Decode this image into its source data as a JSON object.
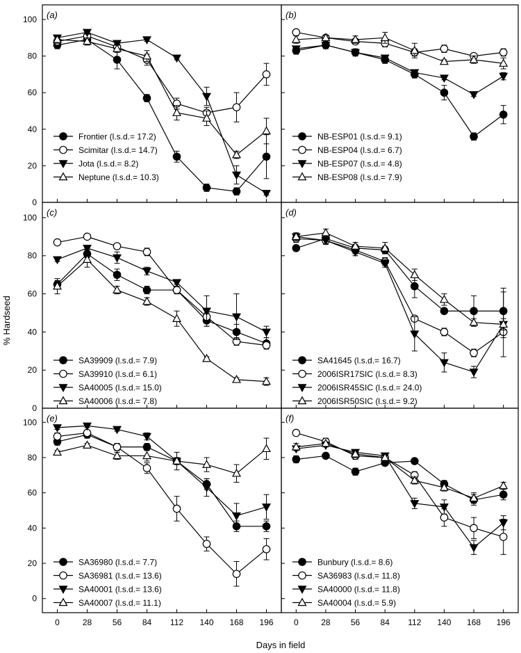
{
  "figure": {
    "ylabel": "% Hardseed",
    "xlabel": "Days in field",
    "x_ticks": [
      "0",
      "28",
      "56",
      "84",
      "112",
      "140",
      "168",
      "196"
    ],
    "y_ticks": [
      "0",
      "20",
      "40",
      "60",
      "80",
      "100"
    ]
  },
  "chart_data": [
    {
      "type": "line",
      "panel_label": "(a)",
      "x": [
        0,
        28,
        56,
        84,
        112,
        140,
        168,
        196
      ],
      "xlim": [
        -14,
        210
      ],
      "ylim": [
        0,
        108
      ],
      "series": [
        {
          "name": "Frontier (l.s.d.= 17.2)",
          "marker": "circle-filled",
          "values": [
            86,
            89,
            78,
            57,
            25,
            8,
            6,
            25
          ],
          "err": [
            2,
            2,
            5,
            2,
            3,
            2,
            2,
            12
          ]
        },
        {
          "name": "Scimitar (l.s.d.= 14.7)",
          "marker": "circle-open",
          "values": [
            88,
            91,
            85,
            78,
            54,
            49,
            52,
            70
          ],
          "err": [
            2,
            2,
            2,
            3,
            3,
            3,
            8,
            6
          ]
        },
        {
          "name": "Jota (l.s.d.= 8.2)",
          "marker": "triangle-down-filled",
          "values": [
            90,
            93,
            87,
            89,
            79,
            58,
            15,
            5
          ],
          "err": [
            1,
            1,
            1,
            1,
            1,
            5,
            5,
            1
          ]
        },
        {
          "name": "Neptune (l.s.d.= 10.3)",
          "marker": "triangle-up-open",
          "values": [
            89,
            88,
            84,
            80,
            49,
            46,
            26,
            39
          ],
          "err": [
            2,
            2,
            2,
            3,
            4,
            4,
            2,
            7
          ]
        }
      ]
    },
    {
      "type": "line",
      "panel_label": "(b)",
      "x": [
        0,
        28,
        56,
        84,
        112,
        140,
        168,
        196
      ],
      "xlim": [
        -14,
        210
      ],
      "ylim": [
        0,
        108
      ],
      "series": [
        {
          "name": "NB-ESP01 (l.s.d.= 9.1)",
          "marker": "circle-filled",
          "values": [
            83,
            86,
            82,
            78,
            70,
            60,
            36,
            48
          ],
          "err": [
            2,
            2,
            2,
            2,
            2,
            4,
            2,
            5
          ]
        },
        {
          "name": "NB-ESP04 (l.s.d.= 6.7)",
          "marker": "circle-open",
          "values": [
            93,
            90,
            88,
            87,
            82,
            84,
            80,
            82
          ],
          "err": [
            1,
            1,
            1,
            2,
            2,
            2,
            1,
            2
          ]
        },
        {
          "name": "NB-ESP07 (l.s.d.= 4.8)",
          "marker": "triangle-down-filled",
          "values": [
            84,
            86,
            82,
            79,
            71,
            68,
            59,
            69
          ],
          "err": [
            1,
            1,
            1,
            1,
            1,
            1,
            1,
            2
          ]
        },
        {
          "name": "NB-ESP08 (l.s.d.= 7.9)",
          "marker": "triangle-up-open",
          "values": [
            89,
            90,
            89,
            90,
            83,
            77,
            78,
            76
          ],
          "err": [
            2,
            1,
            2,
            3,
            4,
            1,
            2,
            3
          ]
        }
      ]
    },
    {
      "type": "line",
      "panel_label": "(c)",
      "x": [
        0,
        28,
        56,
        84,
        112,
        140,
        168,
        196
      ],
      "xlim": [
        -14,
        210
      ],
      "ylim": [
        0,
        108
      ],
      "series": [
        {
          "name": "SA39909 (l.s.d.= 7.9)",
          "marker": "circle-filled",
          "values": [
            65,
            81,
            70,
            62,
            62,
            46,
            40,
            34
          ],
          "err": [
            2,
            2,
            3,
            2,
            2,
            3,
            4,
            3
          ]
        },
        {
          "name": "SA39910 (l.s.d.= 6.1)",
          "marker": "circle-open",
          "values": [
            87,
            90,
            85,
            82,
            62,
            48,
            35,
            33
          ],
          "err": [
            1,
            1,
            1,
            2,
            2,
            2,
            2,
            2
          ]
        },
        {
          "name": "SA40005 (l.s.d.= 15.0)",
          "marker": "triangle-down-filled",
          "values": [
            78,
            84,
            79,
            72,
            66,
            51,
            48,
            40
          ],
          "err": [
            1,
            1,
            3,
            2,
            1,
            8,
            12,
            3
          ]
        },
        {
          "name": "SA40006 (l.s.d.= 7.8)",
          "marker": "triangle-up-open",
          "values": [
            64,
            78,
            62,
            56,
            47,
            26,
            15,
            14
          ],
          "err": [
            4,
            4,
            2,
            2,
            4,
            1,
            1,
            2
          ]
        }
      ]
    },
    {
      "type": "line",
      "panel_label": "(d)",
      "x": [
        0,
        28,
        56,
        84,
        112,
        140,
        168,
        196
      ],
      "xlim": [
        -14,
        210
      ],
      "ylim": [
        0,
        108
      ],
      "series": [
        {
          "name": "SA41645 (l.s.d.= 16.7)",
          "marker": "circle-filled",
          "values": [
            84,
            89,
            84,
            83,
            64,
            51,
            51,
            51
          ],
          "err": [
            1,
            2,
            2,
            2,
            6,
            1,
            8,
            12
          ]
        },
        {
          "name": "2006ISR17SIC (l.s.d.= 8.3)",
          "marker": "circle-open",
          "values": [
            89,
            88,
            83,
            77,
            47,
            40,
            29,
            40
          ],
          "err": [
            2,
            2,
            2,
            2,
            1,
            2,
            2,
            3
          ]
        },
        {
          "name": "2006ISR45SIC (l.s.d.= 24.0)",
          "marker": "triangle-down-filled",
          "values": [
            90,
            88,
            82,
            76,
            39,
            24,
            19,
            44
          ],
          "err": [
            2,
            2,
            2,
            2,
            9,
            5,
            3,
            17
          ]
        },
        {
          "name": "2006ISR50SIC (l.s.d.= 9.2)",
          "marker": "triangle-up-open",
          "values": [
            90,
            92,
            85,
            84,
            70,
            57,
            45,
            44
          ],
          "err": [
            2,
            2,
            2,
            3,
            3,
            3,
            2,
            3
          ]
        }
      ]
    },
    {
      "type": "line",
      "panel_label": "(e)",
      "x": [
        0,
        28,
        56,
        84,
        112,
        140,
        168,
        196
      ],
      "xlim": [
        -14,
        210
      ],
      "ylim": [
        -8,
        108
      ],
      "series": [
        {
          "name": "SA36980 (l.s.d.= 7.7)",
          "marker": "circle-filled",
          "values": [
            89,
            93,
            86,
            86,
            78,
            65,
            41,
            41
          ],
          "err": [
            2,
            2,
            2,
            2,
            2,
            3,
            3,
            3
          ]
        },
        {
          "name": "SA36981 (l.s.d.= 13.6)",
          "marker": "circle-open",
          "values": [
            92,
            94,
            86,
            74,
            51,
            31,
            14,
            28
          ],
          "err": [
            2,
            1,
            2,
            3,
            7,
            4,
            7,
            6
          ]
        },
        {
          "name": "SA40001 (l.s.d.= 13.6)",
          "marker": "triangle-down-filled",
          "values": [
            97,
            98,
            96,
            92,
            78,
            63,
            47,
            52
          ],
          "err": [
            1,
            1,
            1,
            2,
            2,
            5,
            7,
            7
          ]
        },
        {
          "name": "SA40007 (l.s.d.= 11.1)",
          "marker": "triangle-up-open",
          "values": [
            83,
            87,
            81,
            81,
            78,
            76,
            71,
            85
          ],
          "err": [
            1,
            1,
            2,
            3,
            5,
            4,
            5,
            6
          ]
        }
      ]
    },
    {
      "type": "line",
      "panel_label": "(f)",
      "x": [
        0,
        28,
        56,
        84,
        112,
        140,
        168,
        196
      ],
      "xlim": [
        -14,
        210
      ],
      "ylim": [
        -8,
        108
      ],
      "series": [
        {
          "name": "Bunbury (l.s.d.= 8.6)",
          "marker": "circle-filled",
          "values": [
            79,
            81,
            72,
            77,
            78,
            65,
            56,
            59
          ],
          "err": [
            2,
            1,
            2,
            1,
            1,
            2,
            3,
            3
          ]
        },
        {
          "name": "SA36983 (l.s.d.= 11.8)",
          "marker": "circle-open",
          "values": [
            94,
            89,
            81,
            80,
            70,
            46,
            40,
            35
          ],
          "err": [
            1,
            2,
            2,
            2,
            2,
            5,
            6,
            10
          ]
        },
        {
          "name": "SA40000 (l.s.d.= 11.8)",
          "marker": "triangle-down-filled",
          "values": [
            85,
            87,
            83,
            81,
            54,
            52,
            29,
            43
          ],
          "err": [
            1,
            1,
            1,
            1,
            3,
            4,
            4,
            4
          ]
        },
        {
          "name": "SA40004 (l.s.d.= 5.9)",
          "marker": "triangle-up-open",
          "values": [
            86,
            88,
            82,
            80,
            67,
            63,
            57,
            64
          ],
          "err": [
            2,
            1,
            2,
            2,
            2,
            2,
            3,
            2
          ]
        }
      ]
    }
  ]
}
